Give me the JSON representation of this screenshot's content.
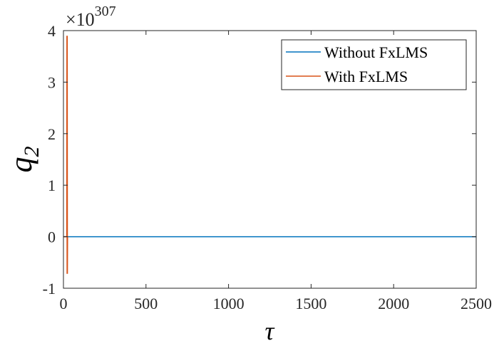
{
  "chart_data": {
    "type": "line",
    "title": "",
    "xlabel": "τ",
    "ylabel_base": "q",
    "ylabel_sub": "2",
    "y_multiplier": {
      "prefix": "×10",
      "exponent": "307"
    },
    "xlim": [
      0,
      2500
    ],
    "ylim": [
      -1,
      4
    ],
    "xticks": [
      0,
      500,
      1000,
      1500,
      2000,
      2500
    ],
    "yticks": [
      -1,
      0,
      1,
      2,
      3,
      4
    ],
    "xtick_labels": [
      "0",
      "500",
      "1000",
      "1500",
      "2000",
      "2500"
    ],
    "ytick_labels": [
      "-1",
      "0",
      "1",
      "2",
      "3",
      "4"
    ],
    "grid": false,
    "legend_position": "top-right",
    "series": [
      {
        "name": "Without FxLMS",
        "color": "#0072BD",
        "x": [
          0,
          2500
        ],
        "y": [
          0,
          0
        ]
      },
      {
        "name": "With FxLMS",
        "color": "#D95319",
        "x": [
          0,
          20,
          21,
          22,
          23,
          24,
          25
        ],
        "y": [
          0,
          0,
          3.9,
          -0.72,
          3.9,
          -0.72,
          0
        ]
      }
    ]
  }
}
